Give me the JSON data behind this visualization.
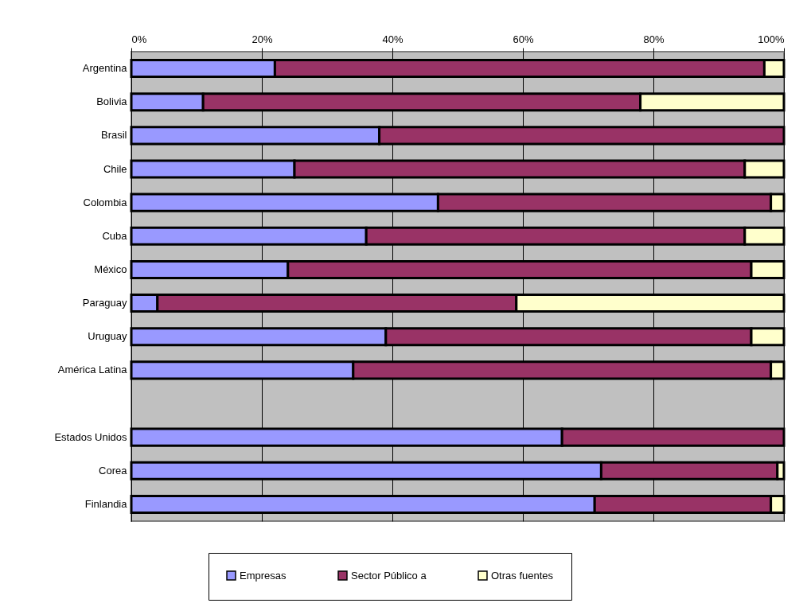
{
  "chart_data": {
    "type": "bar",
    "orientation": "horizontal",
    "stacked": true,
    "categories": [
      "Argentina",
      "Bolivia",
      "Brasil",
      "Chile",
      "Colombia",
      "Cuba",
      "México",
      "Paraguay",
      "Uruguay",
      "América Latina",
      null,
      "Estados Unidos",
      "Corea",
      "Finlandia"
    ],
    "series": [
      {
        "name": "Empresas",
        "color": "#9999ff",
        "values": [
          22,
          11,
          38,
          25,
          47,
          36,
          24,
          4,
          39,
          34,
          null,
          66,
          72,
          71
        ]
      },
      {
        "name": "Sector Público a",
        "color": "#993366",
        "values": [
          75,
          67,
          62,
          69,
          51,
          58,
          71,
          55,
          56,
          64,
          null,
          34,
          27,
          27
        ]
      },
      {
        "name": "Otras fuentes",
        "color": "#ffffcc",
        "values": [
          3,
          22,
          0,
          6,
          2,
          6,
          5,
          41,
          5,
          2,
          null,
          0,
          1,
          2
        ]
      }
    ],
    "xlim": [
      0,
      100
    ],
    "xticks": [
      {
        "value": 0,
        "label": "0%"
      },
      {
        "value": 20,
        "label": "20%"
      },
      {
        "value": 40,
        "label": "40%"
      },
      {
        "value": 60,
        "label": "60%"
      },
      {
        "value": 80,
        "label": "80%"
      },
      {
        "value": 100,
        "label": "100%"
      }
    ],
    "grid": "x",
    "legend": "bottom"
  }
}
